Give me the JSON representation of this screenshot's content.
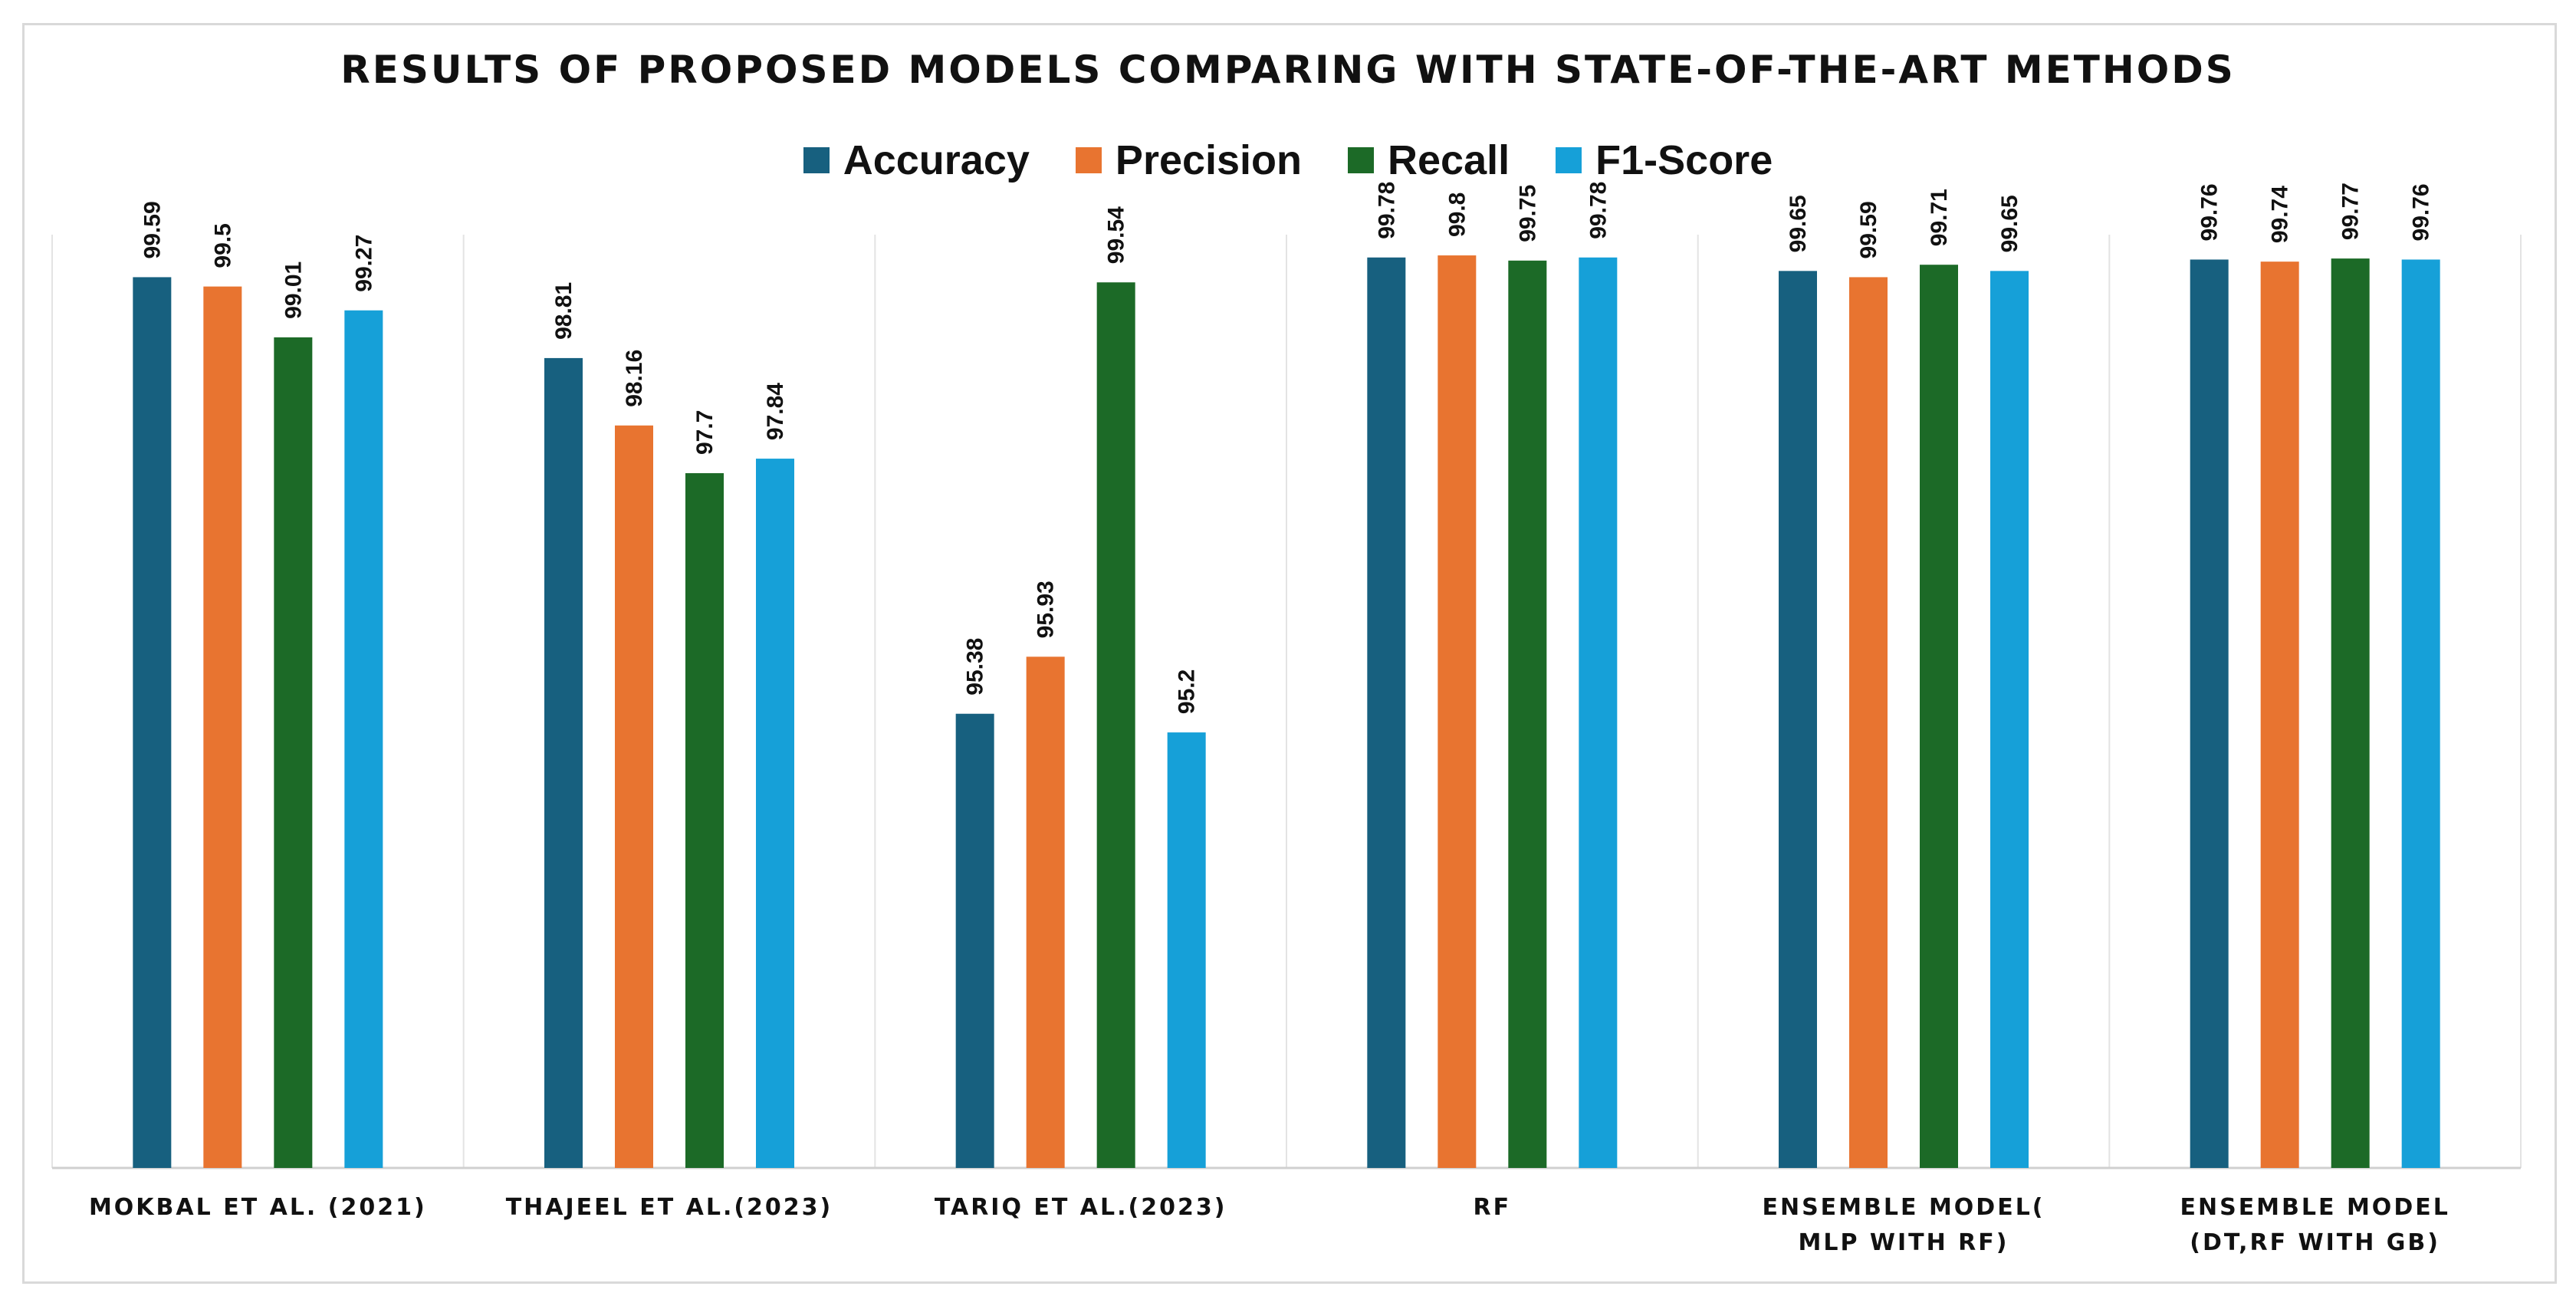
{
  "chart_data": {
    "type": "bar",
    "title": "RESULTS OF PROPOSED MODELS COMPARING WITH STATE-OF-THE-ART METHODS",
    "categories": [
      [
        "MOKBAL ET AL. (2021)"
      ],
      [
        "THAJEEL ET AL.(2023)"
      ],
      [
        "TARIQ ET AL.(2023)"
      ],
      [
        "RF"
      ],
      [
        "ENSEMBLE MODEL(",
        "MLP WITH RF)"
      ],
      [
        "ENSEMBLE MODEL",
        "(DT,RF WITH GB)"
      ]
    ],
    "series": [
      {
        "name": "Accuracy",
        "color": "#17607f",
        "values": [
          99.59,
          98.81,
          95.38,
          99.78,
          99.65,
          99.76
        ]
      },
      {
        "name": "Precision",
        "color": "#e87430",
        "values": [
          99.5,
          98.16,
          95.93,
          99.8,
          99.59,
          99.74
        ]
      },
      {
        "name": "Recall",
        "color": "#1c6a27",
        "values": [
          99.01,
          97.7,
          99.54,
          99.75,
          99.71,
          99.77
        ]
      },
      {
        "name": "F1-Score",
        "color": "#16a0d8",
        "values": [
          99.27,
          97.84,
          95.2,
          99.78,
          99.65,
          99.76
        ]
      }
    ],
    "xlabel": "",
    "ylabel": "",
    "ylim": [
      91,
      100
    ],
    "grid": false,
    "legend_position": "top-center",
    "separator_color": "#e3e3e3"
  }
}
